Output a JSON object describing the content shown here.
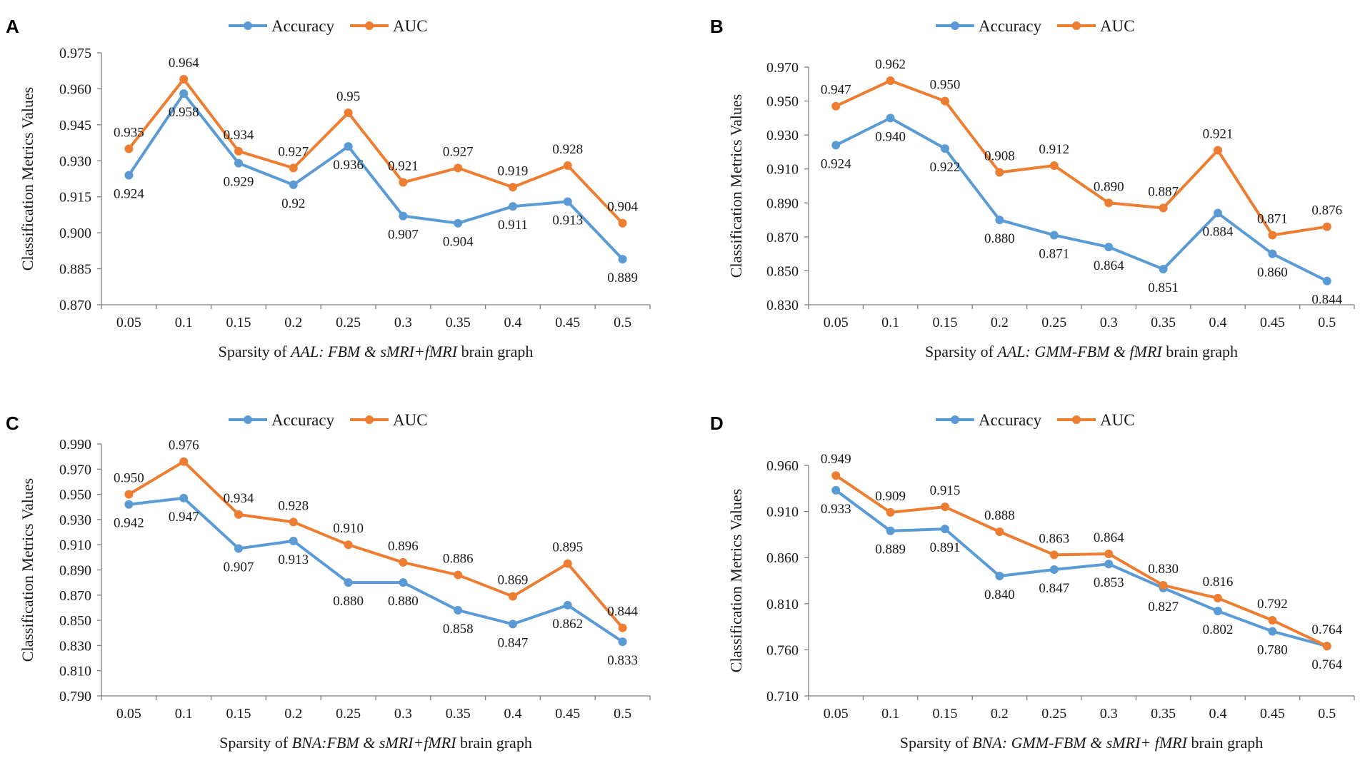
{
  "chart_data": [
    {
      "panel": "A",
      "type": "line",
      "categories": [
        "0.05",
        "0.1",
        "0.15",
        "0.2",
        "0.25",
        "0.3",
        "0.35",
        "0.4",
        "0.45",
        "0.5"
      ],
      "series": [
        {
          "name": "Accuracy",
          "color": "#5B9BD5",
          "values": [
            0.924,
            0.958,
            0.929,
            0.92,
            0.936,
            0.907,
            0.904,
            0.911,
            0.913,
            0.889
          ],
          "labels": [
            "0.924",
            "0.958",
            "0.929",
            "0.92",
            "0.936",
            "0.907",
            "0.904",
            "0.911",
            "0.913",
            "0.889"
          ]
        },
        {
          "name": "AUC",
          "color": "#ED7D31",
          "values": [
            0.935,
            0.964,
            0.934,
            0.927,
            0.95,
            0.921,
            0.927,
            0.919,
            0.928,
            0.904
          ],
          "labels": [
            "0.935",
            "0.964",
            "0.934",
            "0.927",
            "0.95",
            "0.921",
            "0.927",
            "0.919",
            "0.928",
            "0.904"
          ]
        }
      ],
      "ylim": [
        0.87,
        0.975
      ],
      "yticks": [
        "0.870",
        "0.885",
        "0.900",
        "0.915",
        "0.930",
        "0.945",
        "0.960",
        "0.975"
      ],
      "ylabel": "Classification Metrics Values",
      "xlabel_parts": [
        {
          "t": "Sparsity of ",
          "i": false
        },
        {
          "t": "AAL: FBM & sMRI+fMRI",
          "i": true
        },
        {
          "t": " brain graph",
          "i": false
        }
      ],
      "legend": "top-center",
      "grid": false
    },
    {
      "panel": "B",
      "type": "line",
      "categories": [
        "0.05",
        "0.1",
        "0.15",
        "0.2",
        "0.25",
        "0.3",
        "0.35",
        "0.4",
        "0.45",
        "0.5"
      ],
      "series": [
        {
          "name": "Accuracy",
          "color": "#5B9BD5",
          "values": [
            0.924,
            0.94,
            0.922,
            0.88,
            0.871,
            0.864,
            0.851,
            0.884,
            0.86,
            0.844
          ],
          "labels": [
            "0.924",
            "0.940",
            "0.922",
            "0.880",
            "0.871",
            "0.864",
            "0.851",
            "0.884",
            "0.860",
            "0.844"
          ]
        },
        {
          "name": "AUC",
          "color": "#ED7D31",
          "values": [
            0.947,
            0.962,
            0.95,
            0.908,
            0.912,
            0.89,
            0.887,
            0.921,
            0.871,
            0.876
          ],
          "labels": [
            "0.947",
            "0.962",
            "0.950",
            "0.908",
            "0.912",
            "0.890",
            "0.887",
            "0.921",
            "0.871",
            "0.876"
          ]
        }
      ],
      "ylim": [
        0.83,
        0.97
      ],
      "yticks": [
        "0.830",
        "0.850",
        "0.870",
        "0.890",
        "0.910",
        "0.930",
        "0.950",
        "0.970"
      ],
      "ylabel": "Classification Metrics Values",
      "xlabel_parts": [
        {
          "t": "Sparsity of ",
          "i": false
        },
        {
          "t": "AAL: GMM-FBM & fMRI",
          "i": true
        },
        {
          "t": " brain graph",
          "i": false
        }
      ],
      "legend": "top-center",
      "grid": false
    },
    {
      "panel": "C",
      "type": "line",
      "categories": [
        "0.05",
        "0.1",
        "0.15",
        "0.2",
        "0.25",
        "0.3",
        "0.35",
        "0.4",
        "0.45",
        "0.5"
      ],
      "series": [
        {
          "name": "Accuracy",
          "color": "#5B9BD5",
          "values": [
            0.942,
            0.947,
            0.907,
            0.913,
            0.88,
            0.88,
            0.858,
            0.847,
            0.862,
            0.833
          ],
          "labels": [
            "0.942",
            "0.947",
            "0.907",
            "0.913",
            "0.880",
            "0.880",
            "0.858",
            "0.847",
            "0.862",
            "0.833"
          ]
        },
        {
          "name": "AUC",
          "color": "#ED7D31",
          "values": [
            0.95,
            0.976,
            0.934,
            0.928,
            0.91,
            0.896,
            0.886,
            0.869,
            0.895,
            0.844
          ],
          "labels": [
            "0.950",
            "0.976",
            "0.934",
            "0.928",
            "0.910",
            "0.896",
            "0.886",
            "0.869",
            "0.895",
            "0.844"
          ]
        }
      ],
      "ylim": [
        0.79,
        0.99
      ],
      "yticks": [
        "0.790",
        "0.810",
        "0.830",
        "0.850",
        "0.870",
        "0.890",
        "0.910",
        "0.930",
        "0.950",
        "0.970",
        "0.990"
      ],
      "ylabel": "Classification Metrics Values",
      "xlabel_parts": [
        {
          "t": "Sparsity of ",
          "i": false
        },
        {
          "t": "BNA:FBM & sMRI+fMRI",
          "i": true
        },
        {
          "t": " brain graph",
          "i": false
        }
      ],
      "legend": "top-center",
      "grid": false
    },
    {
      "panel": "D",
      "type": "line",
      "categories": [
        "0.05",
        "0.1",
        "0.15",
        "0.2",
        "0.25",
        "0.3",
        "0.35",
        "0.4",
        "0.45",
        "0.5"
      ],
      "series": [
        {
          "name": "Accuracy",
          "color": "#5B9BD5",
          "values": [
            0.933,
            0.889,
            0.891,
            0.84,
            0.847,
            0.853,
            0.827,
            0.802,
            0.78,
            0.764
          ],
          "labels": [
            "0.933",
            "0.889",
            "0.891",
            "0.840",
            "0.847",
            "0.853",
            "0.827",
            "0.802",
            "0.780",
            "0.764"
          ]
        },
        {
          "name": "AUC",
          "color": "#ED7D31",
          "values": [
            0.949,
            0.909,
            0.915,
            0.888,
            0.863,
            0.864,
            0.83,
            0.816,
            0.792,
            0.764
          ],
          "labels": [
            "0.949",
            "0.909",
            "0.915",
            "0.888",
            "0.863",
            "0.864",
            "0.830",
            "0.816",
            "0.792",
            "0.764"
          ]
        }
      ],
      "ylim": [
        0.71,
        0.96
      ],
      "yticks": [
        "0.710",
        "0.760",
        "0.810",
        "0.860",
        "0.910",
        "0.960"
      ],
      "ylabel": "Classification Metrics Values",
      "xlabel_parts": [
        {
          "t": "Sparsity of ",
          "i": false
        },
        {
          "t": "BNA: GMM-FBM & sMRI+ fMRI",
          "i": true
        },
        {
          "t": " brain graph",
          "i": false
        }
      ],
      "legend": "top-center",
      "grid": false
    }
  ]
}
